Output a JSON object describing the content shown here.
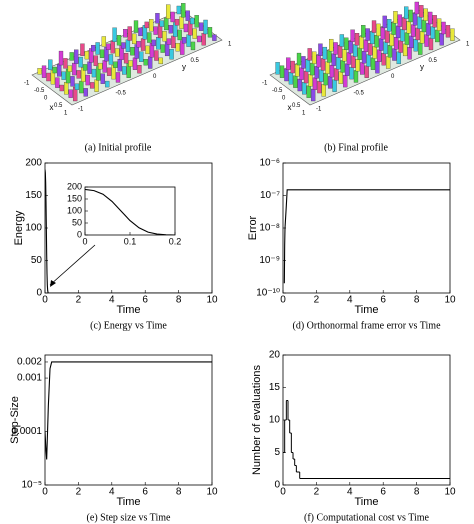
{
  "panels": [
    {
      "caption": "(a)  Initial profile",
      "x_label": "x",
      "y_label": "y",
      "x_ticks": [
        "-1",
        "-0.5",
        "0",
        "0.5",
        "1"
      ],
      "y_ticks": [
        "-1",
        "-0.5",
        "0",
        "0.5",
        "1"
      ]
    },
    {
      "caption": "(b)  Final profile",
      "x_label": "x",
      "y_label": "y",
      "x_ticks": [
        "-1",
        "-0.5",
        "0",
        "0.5",
        "1"
      ],
      "y_ticks": [
        "-1",
        "-0.5",
        "0",
        "0.5",
        "1"
      ]
    }
  ],
  "chart_data": [
    {
      "type": "line",
      "caption": "(c)  Energy vs Time",
      "xlabel": "Time",
      "ylabel": "Energy",
      "color": "#000000",
      "x": [
        0,
        0.02,
        0.04,
        0.06,
        0.08,
        0.1,
        0.12,
        0.14,
        0.16,
        0.18,
        0.2,
        10
      ],
      "values": [
        190,
        185,
        170,
        140,
        100,
        60,
        30,
        12,
        4,
        1,
        0,
        0
      ],
      "xlim": [
        0,
        10
      ],
      "xticks": [
        0,
        2,
        4,
        6,
        8,
        10
      ],
      "ylim": [
        0,
        200
      ],
      "yticks": [
        0,
        50,
        100,
        150,
        200
      ],
      "inset": {
        "xlim": [
          0,
          0.2
        ],
        "xticks": [
          0,
          0.1,
          0.2
        ],
        "ylim": [
          0,
          200
        ],
        "yticks": [
          0,
          50,
          100,
          150,
          200
        ]
      }
    },
    {
      "type": "line",
      "caption": "(d)  Orthonormal frame error vs Time",
      "xlabel": "Time",
      "ylabel": "Error",
      "color": "#000000",
      "log_y": true,
      "x": [
        0.08,
        0.1,
        0.12,
        0.2,
        0.25,
        10
      ],
      "values": [
        2e-10,
        3e-09,
        1e-08,
        5e-08,
        1.5e-07,
        1.5e-07
      ],
      "xlim": [
        0,
        10
      ],
      "xticks": [
        0,
        2,
        4,
        6,
        8,
        10
      ],
      "ylim": [
        1e-10,
        1e-06
      ],
      "yticks": [
        {
          "value": 1e-10,
          "label": "10⁻¹⁰"
        },
        {
          "value": 1e-09,
          "label": "10⁻⁹"
        },
        {
          "value": 1e-08,
          "label": "10⁻⁸"
        },
        {
          "value": 1e-07,
          "label": "10⁻⁷"
        },
        {
          "value": 1e-06,
          "label": "10⁻⁶"
        }
      ]
    },
    {
      "type": "line",
      "caption": "(e)  Step size vs Time",
      "xlabel": "Time",
      "ylabel": "Step-Size",
      "color": "#000000",
      "log_y": true,
      "x": [
        0,
        0.05,
        0.1,
        0.2,
        0.3,
        0.4,
        10
      ],
      "values": [
        0.0001,
        5e-05,
        3e-05,
        0.0003,
        0.0015,
        0.002,
        0.002
      ],
      "xlim": [
        0,
        10
      ],
      "xticks": [
        0,
        2,
        4,
        6,
        8,
        10
      ],
      "ylim": [
        1e-05,
        0.0027
      ],
      "yticks": [
        {
          "value": 1e-05,
          "label": "10⁻⁵"
        },
        0.0001,
        0.001,
        0.002
      ]
    },
    {
      "type": "line",
      "step": true,
      "caption": "(f)  Computational cost vs Time",
      "xlabel": "Time",
      "ylabel": "Number of evaluations",
      "color": "#000000",
      "x": [
        0,
        0.1,
        0.2,
        0.3,
        0.4,
        0.5,
        0.6,
        0.7,
        0.8,
        1,
        10
      ],
      "values": [
        5,
        10,
        13,
        10,
        8,
        5,
        4,
        3,
        2,
        1,
        1
      ],
      "xlim": [
        0,
        10
      ],
      "xticks": [
        0,
        2,
        4,
        6,
        8,
        10
      ],
      "ylim": [
        0,
        20
      ],
      "yticks": [
        0,
        5,
        10,
        15,
        20
      ]
    }
  ]
}
